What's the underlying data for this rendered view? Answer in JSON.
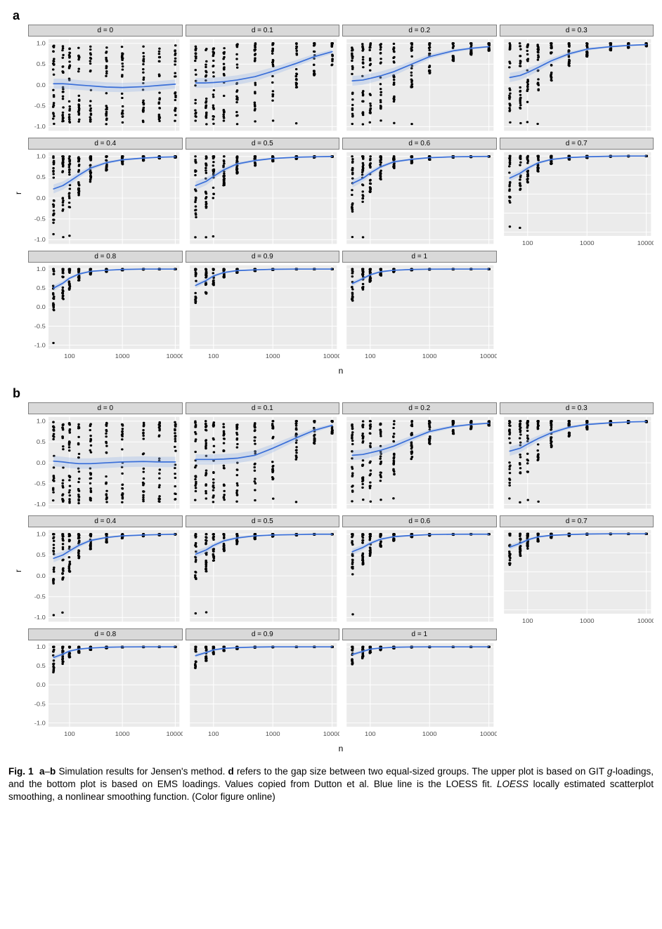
{
  "figure": {
    "caption_label": "Fig. 1",
    "panels_letters": [
      "a",
      "b"
    ],
    "caption_html": "<b>Fig. 1</b>&nbsp;&nbsp;<b>a</b>–<b>b</b> Simulation results for Jensen's method. <b>d</b> refers to the gap size between two equal-sized groups. The upper plot is based on GIT <i>g</i>-loadings, and the bottom plot is based on EMS loadings. Values copied from Dutton et al. Blue line is the LOESS fit. <i>LOESS</i> locally estimated scatterplot smoothing, a nonlinear smoothing function. (Color figure online)"
  },
  "chart": {
    "type": "faceted-scatter-with-loess",
    "x_label": "n",
    "y_label": "r",
    "x_scale": "log10",
    "x_ticks": [
      100,
      1000,
      10000
    ],
    "x_tick_labels": [
      "100",
      "1000",
      "10000"
    ],
    "x_range": [
      40,
      12000
    ],
    "y_ticks": [
      -1.0,
      -0.5,
      0.0,
      0.5,
      1.0
    ],
    "y_tick_labels": [
      "-1.0",
      "-0.5",
      "0.0",
      "0.5",
      "1.0"
    ],
    "y_range": [
      -1.1,
      1.1
    ],
    "n_levels": [
      50,
      75,
      100,
      150,
      250,
      500,
      1000,
      2500,
      5000,
      10000
    ],
    "facet_cols": 4,
    "facet_rows": 3,
    "colors": {
      "panel_bg": "#ebebeb",
      "grid_major": "#ffffff",
      "grid_minor": "#f5f5f5",
      "strip_bg": "#d9d9d9",
      "strip_border": "#7f7f7f",
      "point_fill": "#000000",
      "loess_line": "#3a6fd8",
      "loess_band": "#9bb6e8",
      "tick_text": "#4d4d4d",
      "axis_text": "#333333",
      "page_bg": "#ffffff"
    },
    "style": {
      "point_radius": 1.7,
      "point_opacity": 1.0,
      "loess_width": 1.8,
      "loess_band_opacity": 0.35,
      "grid_width": 1,
      "strip_font_size": 10,
      "tick_font_size": 9,
      "axis_title_font_size": 12
    },
    "d_values": [
      0,
      0.1,
      0.2,
      0.3,
      0.4,
      0.5,
      0.6,
      0.7,
      0.8,
      0.9,
      1
    ],
    "strip_labels": [
      "d = 0",
      "d = 0.1",
      "d = 0.2",
      "d = 0.3",
      "d = 0.4",
      "d = 0.5",
      "d = 0.6",
      "d = 0.7",
      "d = 0.8",
      "d = 0.9",
      "d = 1"
    ],
    "loess_a": {
      "0": [
        0.03,
        0.03,
        0.02,
        0.0,
        -0.02,
        -0.05,
        -0.06,
        -0.04,
        -0.01,
        0.02
      ],
      "0.1": [
        0.05,
        0.05,
        0.06,
        0.08,
        0.12,
        0.2,
        0.33,
        0.52,
        0.68,
        0.8
      ],
      "0.2": [
        0.1,
        0.12,
        0.16,
        0.22,
        0.32,
        0.5,
        0.68,
        0.82,
        0.88,
        0.92
      ],
      "0.3": [
        0.18,
        0.23,
        0.3,
        0.42,
        0.58,
        0.75,
        0.86,
        0.92,
        0.95,
        0.97
      ],
      "0.4": [
        0.22,
        0.3,
        0.4,
        0.55,
        0.72,
        0.85,
        0.92,
        0.96,
        0.98,
        0.99
      ],
      "0.5": [
        0.3,
        0.4,
        0.52,
        0.68,
        0.82,
        0.9,
        0.95,
        0.98,
        0.99,
        1.0
      ],
      "0.6": [
        0.35,
        0.47,
        0.6,
        0.75,
        0.87,
        0.93,
        0.97,
        0.99,
        0.995,
        1.0
      ],
      "0.7": [
        0.42,
        0.55,
        0.68,
        0.82,
        0.91,
        0.96,
        0.98,
        0.995,
        1.0,
        1.0
      ],
      "0.8": [
        0.5,
        0.63,
        0.76,
        0.87,
        0.94,
        0.97,
        0.99,
        1.0,
        1.0,
        1.0
      ],
      "0.9": [
        0.57,
        0.7,
        0.82,
        0.91,
        0.96,
        0.98,
        0.995,
        1.0,
        1.0,
        1.0
      ],
      "1": [
        0.62,
        0.75,
        0.85,
        0.93,
        0.97,
        0.99,
        0.998,
        1.0,
        1.0,
        1.0
      ]
    },
    "loess_b": {
      "0": [
        0.04,
        0.02,
        0.0,
        -0.02,
        -0.02,
        0.0,
        0.02,
        0.03,
        0.02,
        0.02
      ],
      "0.1": [
        0.08,
        0.08,
        0.08,
        0.09,
        0.11,
        0.18,
        0.35,
        0.6,
        0.78,
        0.9
      ],
      "0.2": [
        0.18,
        0.2,
        0.24,
        0.3,
        0.4,
        0.58,
        0.75,
        0.87,
        0.92,
        0.95
      ],
      "0.3": [
        0.28,
        0.35,
        0.45,
        0.58,
        0.72,
        0.85,
        0.92,
        0.96,
        0.98,
        0.99
      ],
      "0.4": [
        0.42,
        0.5,
        0.6,
        0.73,
        0.85,
        0.92,
        0.96,
        0.98,
        0.99,
        1.0
      ],
      "0.5": [
        0.52,
        0.62,
        0.73,
        0.84,
        0.91,
        0.96,
        0.98,
        0.99,
        1.0,
        1.0
      ],
      "0.6": [
        0.58,
        0.68,
        0.78,
        0.88,
        0.94,
        0.97,
        0.99,
        0.998,
        1.0,
        1.0
      ],
      "0.7": [
        0.65,
        0.75,
        0.84,
        0.92,
        0.96,
        0.98,
        0.995,
        1.0,
        1.0,
        1.0
      ],
      "0.8": [
        0.72,
        0.81,
        0.89,
        0.94,
        0.97,
        0.99,
        0.998,
        1.0,
        1.0,
        1.0
      ],
      "0.9": [
        0.77,
        0.85,
        0.92,
        0.96,
        0.98,
        0.995,
        1.0,
        1.0,
        1.0,
        1.0
      ],
      "1": [
        0.8,
        0.88,
        0.94,
        0.97,
        0.99,
        0.998,
        1.0,
        1.0,
        1.0,
        1.0
      ]
    },
    "scatter_spread_a": {
      "0": [
        0.92,
        0.92,
        0.92,
        0.9,
        0.88,
        0.86,
        0.84,
        0.82,
        0.82,
        0.82
      ],
      "0.1": [
        0.9,
        0.9,
        0.9,
        0.88,
        0.86,
        0.82,
        0.72,
        0.58,
        0.45,
        0.35
      ],
      "0.2": [
        0.9,
        0.88,
        0.85,
        0.8,
        0.72,
        0.56,
        0.4,
        0.25,
        0.16,
        0.1
      ],
      "0.3": [
        0.85,
        0.8,
        0.74,
        0.62,
        0.48,
        0.3,
        0.18,
        0.1,
        0.06,
        0.04
      ],
      "0.4": [
        0.82,
        0.75,
        0.65,
        0.5,
        0.34,
        0.2,
        0.11,
        0.06,
        0.03,
        0.02
      ],
      "0.5": [
        0.78,
        0.68,
        0.55,
        0.38,
        0.24,
        0.14,
        0.07,
        0.04,
        0.02,
        0.01
      ],
      "0.6": [
        0.72,
        0.6,
        0.46,
        0.3,
        0.17,
        0.1,
        0.05,
        0.025,
        0.012,
        0.006
      ],
      "0.7": [
        0.65,
        0.52,
        0.38,
        0.23,
        0.12,
        0.06,
        0.03,
        0.015,
        0.008,
        0.004
      ],
      "0.8": [
        0.58,
        0.44,
        0.3,
        0.17,
        0.09,
        0.045,
        0.022,
        0.01,
        0.005,
        0.003
      ],
      "0.9": [
        0.5,
        0.37,
        0.24,
        0.13,
        0.065,
        0.032,
        0.016,
        0.007,
        0.004,
        0.002
      ],
      "1": [
        0.45,
        0.31,
        0.19,
        0.1,
        0.05,
        0.024,
        0.012,
        0.006,
        0.003,
        0.002
      ]
    },
    "scatter_spread_b": {
      "0": [
        0.96,
        0.96,
        0.96,
        0.96,
        0.96,
        0.96,
        0.96,
        0.96,
        0.96,
        0.96
      ],
      "0.1": [
        0.94,
        0.94,
        0.94,
        0.93,
        0.92,
        0.88,
        0.75,
        0.52,
        0.35,
        0.2
      ],
      "0.2": [
        0.9,
        0.88,
        0.85,
        0.78,
        0.68,
        0.5,
        0.32,
        0.18,
        0.11,
        0.06
      ],
      "0.3": [
        0.85,
        0.78,
        0.68,
        0.52,
        0.36,
        0.22,
        0.12,
        0.06,
        0.03,
        0.015
      ],
      "0.4": [
        0.72,
        0.62,
        0.5,
        0.35,
        0.22,
        0.12,
        0.06,
        0.03,
        0.015,
        0.008
      ],
      "0.5": [
        0.62,
        0.52,
        0.38,
        0.25,
        0.15,
        0.08,
        0.04,
        0.02,
        0.01,
        0.005
      ],
      "0.6": [
        0.55,
        0.42,
        0.3,
        0.18,
        0.1,
        0.05,
        0.025,
        0.012,
        0.006,
        0.003
      ],
      "0.7": [
        0.48,
        0.35,
        0.23,
        0.13,
        0.07,
        0.035,
        0.018,
        0.009,
        0.005,
        0.003
      ],
      "0.8": [
        0.4,
        0.28,
        0.18,
        0.1,
        0.05,
        0.025,
        0.012,
        0.006,
        0.003,
        0.002
      ],
      "0.9": [
        0.34,
        0.22,
        0.13,
        0.07,
        0.035,
        0.017,
        0.009,
        0.005,
        0.003,
        0.002
      ],
      "1": [
        0.3,
        0.19,
        0.11,
        0.06,
        0.03,
        0.015,
        0.008,
        0.004,
        0.002,
        0.001
      ]
    },
    "points_per_column": 25
  }
}
